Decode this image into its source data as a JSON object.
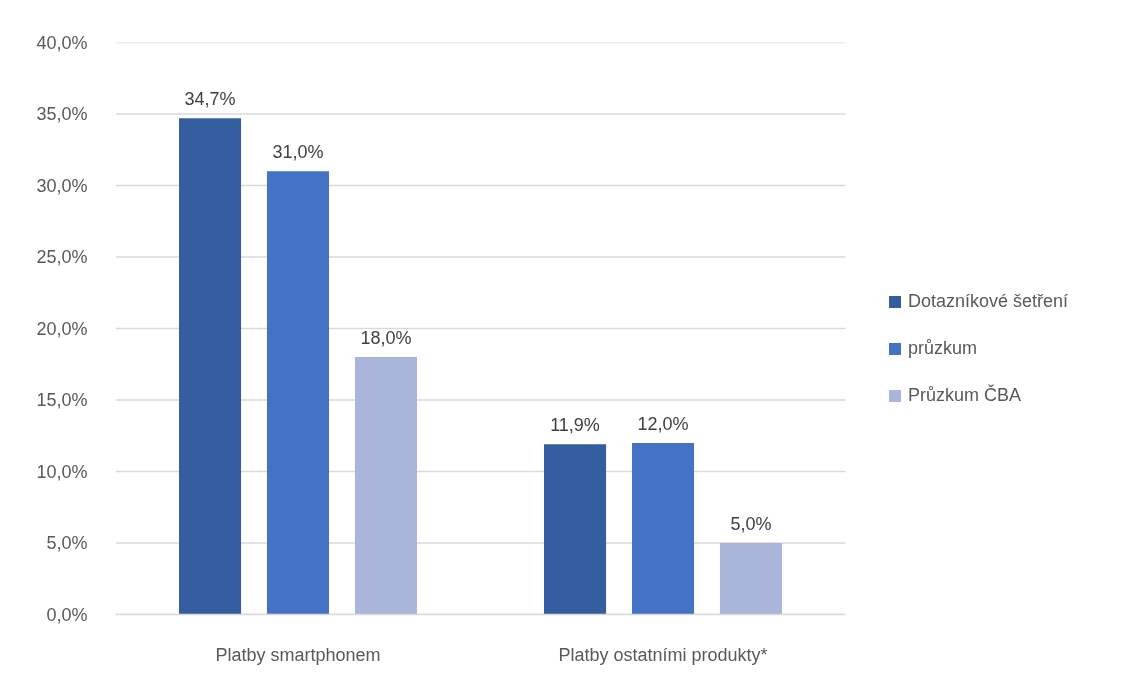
{
  "chart_data": {
    "type": "bar",
    "categories": [
      "Platby smartphonem",
      "Platby ostatními produkty*"
    ],
    "series": [
      {
        "name": "Dotazníkové šetření",
        "color": "#355ea1",
        "values": [
          34.7,
          11.9
        ],
        "value_labels": [
          "34,7%",
          "11,9%"
        ]
      },
      {
        "name": "průzkum",
        "color": "#4472c4",
        "values": [
          31.0,
          12.0
        ],
        "value_labels": [
          "31,0%",
          "12,0%"
        ]
      },
      {
        "name": "Průzkum ČBA",
        "color": "#a9b5d9",
        "values": [
          18.0,
          5.0
        ],
        "value_labels": [
          "18,0%",
          "5,0%"
        ]
      }
    ],
    "ylim": [
      0,
      40
    ],
    "yticks": [
      {
        "value": 0,
        "label": "0,0%"
      },
      {
        "value": 5,
        "label": "5,0%"
      },
      {
        "value": 10,
        "label": "10,0%"
      },
      {
        "value": 15,
        "label": "15,0%"
      },
      {
        "value": 20,
        "label": "20,0%"
      },
      {
        "value": 25,
        "label": "25,0%"
      },
      {
        "value": 30,
        "label": "30,0%"
      },
      {
        "value": 35,
        "label": "35,0%"
      },
      {
        "value": 40,
        "label": "40,0%"
      }
    ],
    "grid": "y",
    "legend": "right"
  }
}
